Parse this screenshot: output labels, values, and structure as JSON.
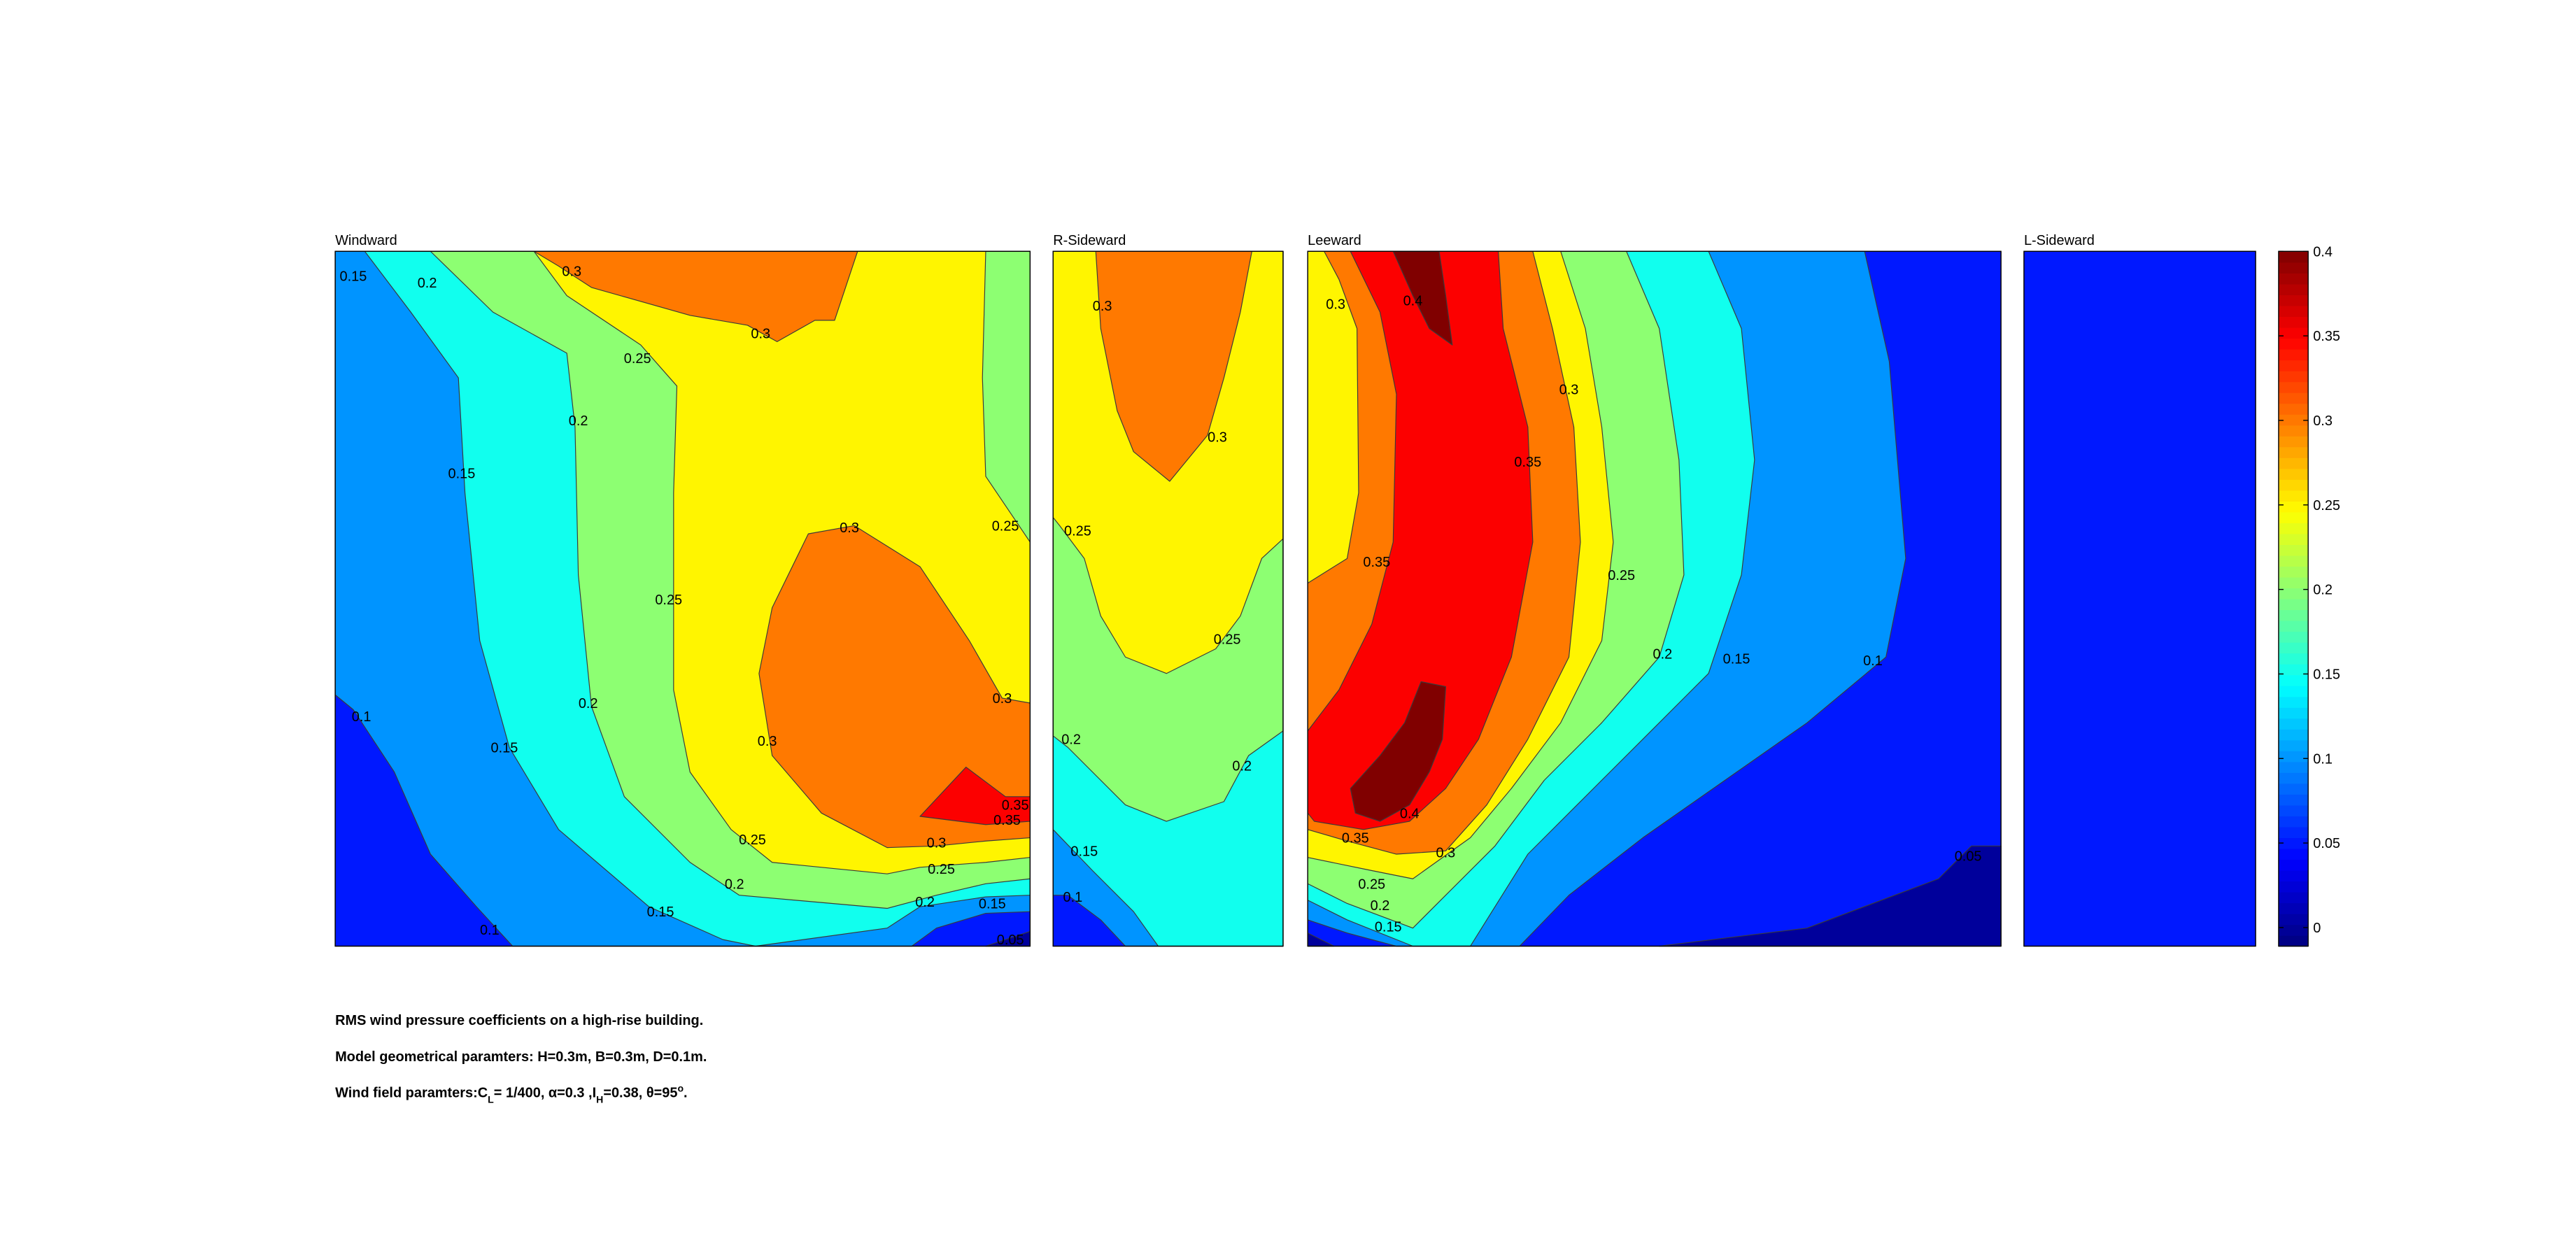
{
  "chart_data": {
    "type": "contour",
    "colormap": "jet",
    "panels": [
      {
        "title": "Windward",
        "contour_labels": [
          0.15,
          0.2,
          0.3,
          0.25,
          0.3,
          0.2,
          0.15,
          0.3,
          0.25,
          0.25,
          0.1,
          0.2,
          0.3,
          0.3,
          0.15,
          0.35,
          0.35,
          0.3,
          0.25,
          0.25,
          0.2,
          0.2,
          0.15,
          0.15,
          0.1,
          0.05
        ]
      },
      {
        "title": "R-Sideward",
        "contour_labels": [
          0.3,
          0.3,
          0.25,
          0.25,
          0.2,
          0.2,
          0.15,
          0.1
        ]
      },
      {
        "title": "Leeward",
        "contour_labels": [
          0.3,
          0.4,
          0.3,
          0.35,
          0.35,
          0.25,
          0.2,
          0.15,
          0.1,
          0.4,
          0.35,
          0.3,
          0.25,
          0.2,
          0.15,
          0.05
        ]
      },
      {
        "title": "L-Sideward"
      }
    ],
    "colorbar": {
      "ylim": [
        -0.011,
        0.4
      ],
      "yticks": [
        0,
        0.05,
        0.1,
        0.15,
        0.2,
        0.25,
        0.3,
        0.35,
        0.4
      ]
    },
    "caption": [
      "RMS wind pressure coefficients on a high-rise building.",
      "Model geometrical paramters: H=0.3m, B=0.3m, D=0.1m.",
      [
        "Wind field paramters:C",
        "L",
        "= 1/400, α=0.3 ,I",
        "H",
        "=0.38, θ=95",
        "o",
        "."
      ]
    ]
  }
}
